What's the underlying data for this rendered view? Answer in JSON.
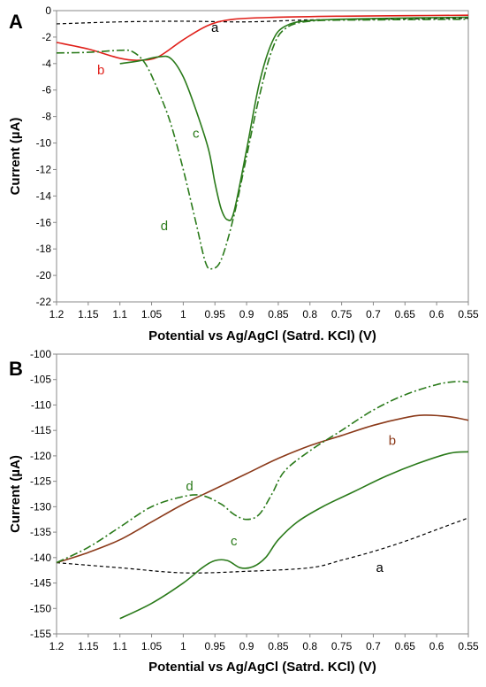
{
  "chart_data": [
    {
      "type": "line",
      "panel_label": "A",
      "xlabel": "Potential vs Ag/AgCl (Satrd. KCl)  (V)",
      "ylabel": "Current (µA)",
      "xlim": [
        1.2,
        0.55
      ],
      "ylim": [
        -22,
        0
      ],
      "x_reversed": true,
      "x_ticks": [
        1.2,
        1.15,
        1.1,
        1.05,
        1,
        0.95,
        0.9,
        0.85,
        0.8,
        0.75,
        0.7,
        0.65,
        0.6,
        0.55
      ],
      "x_tick_labels": [
        "1.2",
        "1.15",
        "1.1",
        "1.05",
        "1",
        "0.95",
        "0.9",
        "0.85",
        "0.8",
        "0.75",
        "0.7",
        "0.65",
        "0.6",
        "0.55"
      ],
      "y_ticks": [
        0,
        -2,
        -4,
        -6,
        -8,
        -10,
        -12,
        -14,
        -16,
        -18,
        -20,
        -22
      ],
      "y_tick_labels": [
        "0",
        "-2",
        "-4",
        "-6",
        "-8",
        "-10",
        "-12",
        "-14",
        "-16",
        "-18",
        "-20",
        "-22"
      ],
      "grid": false,
      "legend": "none",
      "series": [
        {
          "name": "a",
          "color": "#000000",
          "style": "dashed",
          "points": [
            [
              1.2,
              -1.0
            ],
            [
              1.1,
              -0.85
            ],
            [
              1.0,
              -0.8
            ],
            [
              0.9,
              -0.85
            ],
            [
              0.8,
              -0.7
            ],
            [
              0.7,
              -0.65
            ],
            [
              0.6,
              -0.6
            ],
            [
              0.55,
              -0.58
            ]
          ]
        },
        {
          "name": "b",
          "color": "#e0201a",
          "style": "solid",
          "points": [
            [
              1.2,
              -2.4
            ],
            [
              1.15,
              -2.9
            ],
            [
              1.1,
              -3.6
            ],
            [
              1.07,
              -3.75
            ],
            [
              1.04,
              -3.5
            ],
            [
              1.0,
              -2.2
            ],
            [
              0.96,
              -1.1
            ],
            [
              0.92,
              -0.65
            ],
            [
              0.85,
              -0.5
            ],
            [
              0.75,
              -0.42
            ],
            [
              0.65,
              -0.38
            ],
            [
              0.55,
              -0.35
            ]
          ]
        },
        {
          "name": "c",
          "color": "#2a7a1a",
          "style": "solid",
          "points": [
            [
              1.1,
              -4.0
            ],
            [
              1.07,
              -3.8
            ],
            [
              1.04,
              -3.5
            ],
            [
              1.02,
              -3.6
            ],
            [
              1.0,
              -5.0
            ],
            [
              0.98,
              -7.5
            ],
            [
              0.96,
              -10.5
            ],
            [
              0.95,
              -13.0
            ],
            [
              0.94,
              -15.0
            ],
            [
              0.93,
              -15.8
            ],
            [
              0.92,
              -15.2
            ],
            [
              0.9,
              -10.5
            ],
            [
              0.88,
              -5.5
            ],
            [
              0.86,
              -2.4
            ],
            [
              0.84,
              -1.2
            ],
            [
              0.8,
              -0.75
            ],
            [
              0.7,
              -0.6
            ],
            [
              0.55,
              -0.5
            ]
          ]
        },
        {
          "name": "d",
          "color": "#2a7a1a",
          "style": "dashdot",
          "points": [
            [
              1.2,
              -3.2
            ],
            [
              1.15,
              -3.15
            ],
            [
              1.1,
              -3.0
            ],
            [
              1.08,
              -3.1
            ],
            [
              1.06,
              -4.0
            ],
            [
              1.04,
              -6.0
            ],
            [
              1.02,
              -8.5
            ],
            [
              1.0,
              -12.0
            ],
            [
              0.98,
              -16.0
            ],
            [
              0.965,
              -19.0
            ],
            [
              0.955,
              -19.5
            ],
            [
              0.94,
              -18.8
            ],
            [
              0.92,
              -15.5
            ],
            [
              0.9,
              -11.0
            ],
            [
              0.88,
              -6.5
            ],
            [
              0.86,
              -3.0
            ],
            [
              0.84,
              -1.4
            ],
            [
              0.8,
              -0.8
            ],
            [
              0.7,
              -0.7
            ],
            [
              0.55,
              -0.65
            ]
          ]
        }
      ],
      "curve_labels": [
        {
          "text": "a",
          "x": 0.95,
          "y": -1.6,
          "color": "#000000"
        },
        {
          "text": "b",
          "x": 1.13,
          "y": -4.8,
          "color": "#e0201a"
        },
        {
          "text": "c",
          "x": 0.98,
          "y": -9.6,
          "color": "#2a7a1a"
        },
        {
          "text": "d",
          "x": 1.03,
          "y": -16.6,
          "color": "#2a7a1a"
        }
      ]
    },
    {
      "type": "line",
      "panel_label": "B",
      "xlabel": "Potential vs Ag/AgCl (Satrd. KCl)  (V)",
      "ylabel": "Current (µA)",
      "xlim": [
        1.2,
        0.55
      ],
      "ylim": [
        -155,
        -100
      ],
      "x_reversed": true,
      "x_ticks": [
        1.2,
        1.15,
        1.1,
        1.05,
        1,
        0.95,
        0.9,
        0.85,
        0.8,
        0.75,
        0.7,
        0.65,
        0.6,
        0.55
      ],
      "x_tick_labels": [
        "1.2",
        "1.15",
        "1.1",
        "1.05",
        "1",
        "0.95",
        "0.9",
        "0.85",
        "0.8",
        "0.75",
        "0.7",
        "0.65",
        "0.6",
        "0.55"
      ],
      "y_ticks": [
        -100,
        -105,
        -110,
        -115,
        -120,
        -125,
        -130,
        -135,
        -140,
        -145,
        -150,
        -155
      ],
      "y_tick_labels": [
        "-100",
        "-105",
        "-110",
        "-115",
        "-120",
        "-125",
        "-130",
        "-135",
        "-140",
        "-145",
        "-150",
        "-155"
      ],
      "grid": false,
      "legend": "none",
      "series": [
        {
          "name": "a",
          "color": "#000000",
          "style": "dashed",
          "points": [
            [
              1.2,
              -141.0
            ],
            [
              1.1,
              -142.0
            ],
            [
              1.0,
              -143.0
            ],
            [
              0.9,
              -142.7
            ],
            [
              0.8,
              -142.0
            ],
            [
              0.75,
              -140.5
            ],
            [
              0.7,
              -138.8
            ],
            [
              0.65,
              -136.8
            ],
            [
              0.6,
              -134.5
            ],
            [
              0.55,
              -132.2
            ]
          ]
        },
        {
          "name": "b",
          "color": "#8b3a1a",
          "style": "solid",
          "points": [
            [
              1.2,
              -141.0
            ],
            [
              1.15,
              -139.0
            ],
            [
              1.1,
              -136.5
            ],
            [
              1.05,
              -133.0
            ],
            [
              1.0,
              -129.5
            ],
            [
              0.95,
              -126.5
            ],
            [
              0.9,
              -123.5
            ],
            [
              0.85,
              -120.5
            ],
            [
              0.8,
              -118.0
            ],
            [
              0.75,
              -116.0
            ],
            [
              0.7,
              -114.0
            ],
            [
              0.65,
              -112.5
            ],
            [
              0.62,
              -112.0
            ],
            [
              0.58,
              -112.3
            ],
            [
              0.55,
              -113.0
            ]
          ]
        },
        {
          "name": "c",
          "color": "#2a7a1a",
          "style": "solid",
          "points": [
            [
              1.1,
              -152.0
            ],
            [
              1.05,
              -149.0
            ],
            [
              1.0,
              -145.0
            ],
            [
              0.97,
              -142.0
            ],
            [
              0.95,
              -140.6
            ],
            [
              0.93,
              -140.6
            ],
            [
              0.91,
              -142.0
            ],
            [
              0.89,
              -141.8
            ],
            [
              0.87,
              -140.0
            ],
            [
              0.85,
              -136.5
            ],
            [
              0.82,
              -133.0
            ],
            [
              0.78,
              -130.0
            ],
            [
              0.73,
              -127.0
            ],
            [
              0.68,
              -124.0
            ],
            [
              0.63,
              -121.5
            ],
            [
              0.58,
              -119.5
            ],
            [
              0.55,
              -119.2
            ]
          ]
        },
        {
          "name": "d",
          "color": "#2a7a1a",
          "style": "dashdot",
          "points": [
            [
              1.2,
              -141.0
            ],
            [
              1.15,
              -138.0
            ],
            [
              1.1,
              -134.0
            ],
            [
              1.05,
              -130.0
            ],
            [
              1.0,
              -128.0
            ],
            [
              0.97,
              -127.8
            ],
            [
              0.94,
              -129.5
            ],
            [
              0.92,
              -131.5
            ],
            [
              0.9,
              -132.5
            ],
            [
              0.88,
              -131.5
            ],
            [
              0.86,
              -127.5
            ],
            [
              0.84,
              -123.0
            ],
            [
              0.8,
              -119.0
            ],
            [
              0.75,
              -115.0
            ],
            [
              0.7,
              -111.0
            ],
            [
              0.65,
              -108.0
            ],
            [
              0.6,
              -106.0
            ],
            [
              0.57,
              -105.4
            ],
            [
              0.55,
              -105.5
            ]
          ]
        }
      ],
      "curve_labels": [
        {
          "text": "a",
          "x": 0.69,
          "y": -142.8,
          "color": "#000000"
        },
        {
          "text": "b",
          "x": 0.67,
          "y": -117.8,
          "color": "#8b3a1a"
        },
        {
          "text": "c",
          "x": 0.92,
          "y": -137.6,
          "color": "#2a7a1a"
        },
        {
          "text": "d",
          "x": 0.99,
          "y": -126.8,
          "color": "#2a7a1a"
        }
      ]
    }
  ]
}
